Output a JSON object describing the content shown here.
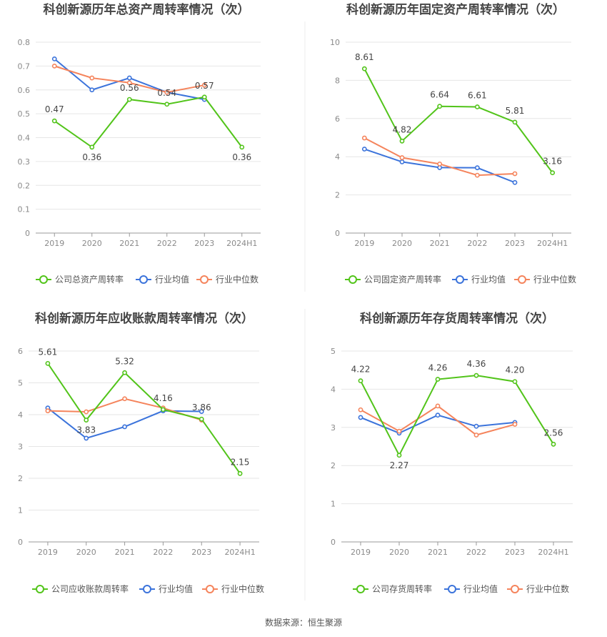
{
  "source": "数据来源：恒生聚源",
  "colors": {
    "company": "#52c41a",
    "avg": "#3b73db",
    "median": "#f5845c"
  },
  "chart_data": [
    {
      "type": "line",
      "title": "科创新源历年总资产周转率情况（次）",
      "categories": [
        "2019",
        "2020",
        "2021",
        "2022",
        "2023",
        "2024H1"
      ],
      "ylim": [
        0,
        0.8
      ],
      "yticks": [
        "0",
        "0.1",
        "0.2",
        "0.3",
        "0.4",
        "0.5",
        "0.6",
        "0.7",
        "0.8"
      ],
      "grid": true,
      "legend_position": "bottom",
      "series": [
        {
          "name": "公司总资产周转率",
          "values": [
            0.47,
            0.36,
            0.56,
            0.54,
            0.57,
            0.36
          ],
          "labels": [
            "0.47",
            "0.36",
            "0.56",
            "0.54",
            "0.57",
            "0.36"
          ]
        },
        {
          "name": "行业均值",
          "values": [
            0.73,
            0.6,
            0.65,
            0.59,
            0.56,
            null
          ]
        },
        {
          "name": "行业中位数",
          "values": [
            0.7,
            0.65,
            0.63,
            0.59,
            0.62,
            null
          ]
        }
      ]
    },
    {
      "type": "line",
      "title": "科创新源历年固定资产周转率情况（次）",
      "categories": [
        "2019",
        "2020",
        "2021",
        "2022",
        "2023",
        "2024H1"
      ],
      "ylim": [
        0,
        10
      ],
      "yticks": [
        "0",
        "2",
        "4",
        "6",
        "8",
        "10"
      ],
      "grid": true,
      "legend_position": "bottom",
      "series": [
        {
          "name": "公司固定资产周转率",
          "values": [
            8.61,
            4.82,
            6.64,
            6.61,
            5.81,
            3.16
          ],
          "labels": [
            "8.61",
            "4.82",
            "6.64",
            "6.61",
            "5.81",
            "3.16"
          ]
        },
        {
          "name": "行业均值",
          "values": [
            4.4,
            3.73,
            3.43,
            3.42,
            2.65,
            null
          ]
        },
        {
          "name": "行业中位数",
          "values": [
            4.98,
            3.95,
            3.62,
            3.03,
            3.11,
            null
          ]
        }
      ]
    },
    {
      "type": "line",
      "title": "科创新源历年应收账款周转率情况（次）",
      "categories": [
        "2019",
        "2020",
        "2021",
        "2022",
        "2023",
        "2024H1"
      ],
      "ylim": [
        0,
        6
      ],
      "yticks": [
        "0",
        "1",
        "2",
        "3",
        "4",
        "5",
        "6"
      ],
      "grid": true,
      "legend_position": "bottom",
      "series": [
        {
          "name": "公司应收账款周转率",
          "values": [
            5.61,
            3.83,
            5.32,
            4.16,
            3.86,
            2.15
          ],
          "labels": [
            "5.61",
            "3.83",
            "5.32",
            "4.16",
            "3.86",
            "2.15"
          ]
        },
        {
          "name": "行业均值",
          "values": [
            4.21,
            3.26,
            3.62,
            4.12,
            4.1,
            null
          ]
        },
        {
          "name": "行业中位数",
          "values": [
            4.12,
            4.09,
            4.5,
            4.21,
            3.83,
            null
          ]
        }
      ]
    },
    {
      "type": "line",
      "title": "科创新源历年存货周转率情况（次）",
      "categories": [
        "2019",
        "2020",
        "2021",
        "2022",
        "2023",
        "2024H1"
      ],
      "ylim": [
        0,
        5
      ],
      "yticks": [
        "0",
        "1",
        "2",
        "3",
        "4",
        "5"
      ],
      "grid": true,
      "legend_position": "bottom",
      "series": [
        {
          "name": "公司存货周转率",
          "values": [
            4.22,
            2.27,
            4.26,
            4.36,
            4.2,
            2.56
          ],
          "labels": [
            "4.22",
            "2.27",
            "4.26",
            "4.36",
            "4.20",
            "2.56"
          ]
        },
        {
          "name": "行业均值",
          "values": [
            3.26,
            2.85,
            3.32,
            3.03,
            3.13,
            null
          ]
        },
        {
          "name": "行业中位数",
          "values": [
            3.46,
            2.9,
            3.56,
            2.8,
            3.08,
            null
          ]
        }
      ]
    }
  ]
}
